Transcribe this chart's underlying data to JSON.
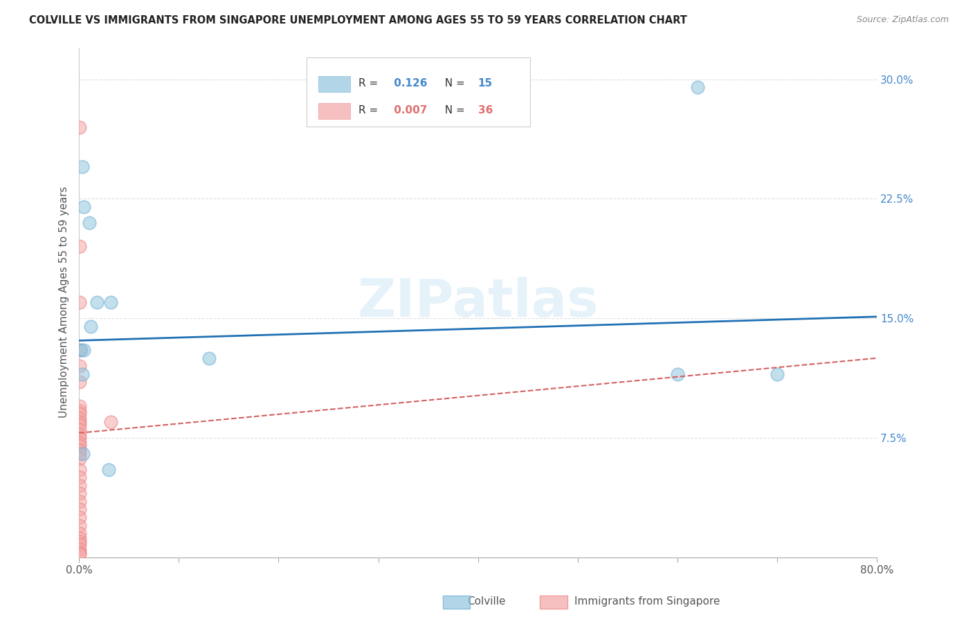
{
  "title": "COLVILLE VS IMMIGRANTS FROM SINGAPORE UNEMPLOYMENT AMONG AGES 55 TO 59 YEARS CORRELATION CHART",
  "source": "Source: ZipAtlas.com",
  "ylabel": "Unemployment Among Ages 55 to 59 years",
  "ytick_values": [
    7.5,
    15.0,
    22.5,
    30.0
  ],
  "xlim": [
    0,
    80
  ],
  "ylim": [
    0,
    32
  ],
  "watermark": "ZIPatlas",
  "colville_color": "#92c5de",
  "singapore_color": "#f4a6a6",
  "colville_line_color": "#2171b5",
  "singapore_line_color": "#d46060",
  "colville_R": "0.126",
  "colville_N": "15",
  "singapore_R": "0.007",
  "singapore_N": "36",
  "colville_points": [
    [
      0.3,
      24.5
    ],
    [
      0.5,
      22.0
    ],
    [
      1.0,
      21.0
    ],
    [
      1.8,
      16.0
    ],
    [
      1.2,
      14.5
    ],
    [
      0.2,
      13.0
    ],
    [
      3.2,
      16.0
    ],
    [
      0.3,
      11.5
    ],
    [
      13.0,
      12.5
    ],
    [
      60.0,
      11.5
    ],
    [
      70.0,
      11.5
    ],
    [
      0.4,
      6.5
    ],
    [
      3.0,
      5.5
    ],
    [
      62.0,
      29.5
    ],
    [
      0.5,
      13.0
    ]
  ],
  "singapore_points": [
    [
      0.05,
      27.0
    ],
    [
      0.05,
      19.5
    ],
    [
      0.05,
      16.0
    ],
    [
      0.05,
      9.5
    ],
    [
      0.05,
      9.2
    ],
    [
      0.05,
      9.0
    ],
    [
      0.05,
      8.7
    ],
    [
      0.05,
      8.5
    ],
    [
      0.05,
      8.3
    ],
    [
      0.05,
      8.0
    ],
    [
      0.05,
      7.7
    ],
    [
      0.05,
      7.5
    ],
    [
      0.05,
      7.2
    ],
    [
      0.05,
      7.0
    ],
    [
      0.05,
      6.7
    ],
    [
      0.05,
      6.5
    ],
    [
      0.05,
      6.2
    ],
    [
      0.05,
      5.5
    ],
    [
      0.05,
      5.0
    ],
    [
      0.05,
      4.5
    ],
    [
      0.05,
      4.0
    ],
    [
      0.05,
      3.5
    ],
    [
      0.05,
      3.0
    ],
    [
      0.05,
      2.5
    ],
    [
      0.05,
      2.0
    ],
    [
      0.05,
      1.5
    ],
    [
      0.05,
      1.2
    ],
    [
      0.05,
      1.0
    ],
    [
      0.05,
      0.8
    ],
    [
      0.05,
      0.5
    ],
    [
      0.05,
      0.3
    ],
    [
      0.05,
      0.2
    ],
    [
      3.2,
      8.5
    ],
    [
      0.05,
      13.0
    ],
    [
      0.05,
      12.0
    ],
    [
      0.05,
      11.0
    ]
  ],
  "colville_line": {
    "x0": 0,
    "y0": 13.6,
    "x1": 80,
    "y1": 15.1
  },
  "singapore_line": {
    "x0": 0,
    "y0": 7.8,
    "x1": 80,
    "y1": 12.5
  },
  "background_color": "#ffffff",
  "grid_color": "#e0e0e0"
}
